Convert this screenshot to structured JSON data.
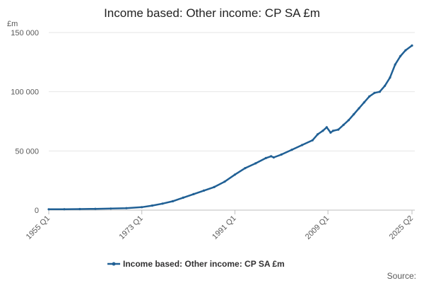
{
  "colors": {
    "series": "#206095",
    "grid": "#e6e6e6",
    "axis": "#bdbdbd"
  },
  "chart_data": {
    "type": "line",
    "title": "Income based: Other income: CP SA £m",
    "unit_label": "£m",
    "source_label": "Source:",
    "xlabel": "",
    "ylabel": "",
    "ylim": [
      0,
      150000
    ],
    "yticks": [
      0,
      50000,
      100000,
      150000
    ],
    "ytick_labels": [
      "0",
      "50 000",
      "100 000",
      "150 000"
    ],
    "xtick_labels": [
      "1955 Q1",
      "1973 Q1",
      "1991 Q1",
      "2009 Q1",
      "2025 Q2"
    ],
    "grid": true,
    "legend_position": "bottom",
    "series": [
      {
        "name": "Income based: Other income: CP SA £m",
        "points": [
          [
            "1955 Q1",
            700
          ],
          [
            "1958 Q1",
            800
          ],
          [
            "1961 Q1",
            900
          ],
          [
            "1964 Q1",
            1100
          ],
          [
            "1967 Q1",
            1300
          ],
          [
            "1970 Q1",
            1700
          ],
          [
            "1973 Q1",
            2500
          ],
          [
            "1975 Q1",
            3800
          ],
          [
            "1977 Q1",
            5500
          ],
          [
            "1979 Q1",
            7500
          ],
          [
            "1981 Q1",
            10500
          ],
          [
            "1983 Q1",
            13500
          ],
          [
            "1985 Q1",
            16500
          ],
          [
            "1987 Q1",
            19500
          ],
          [
            "1989 Q1",
            24000
          ],
          [
            "1991 Q1",
            30000
          ],
          [
            "1993 Q1",
            35500
          ],
          [
            "1995 Q1",
            39500
          ],
          [
            "1997 Q1",
            44000
          ],
          [
            "1998 Q1",
            45500
          ],
          [
            "1998 Q3",
            44500
          ],
          [
            "2000 Q1",
            47000
          ],
          [
            "2002 Q1",
            51000
          ],
          [
            "2004 Q1",
            55000
          ],
          [
            "2006 Q1",
            59000
          ],
          [
            "2007 Q1",
            64000
          ],
          [
            "2008 Q1",
            67000
          ],
          [
            "2008 Q4",
            70000
          ],
          [
            "2009 Q3",
            65500
          ],
          [
            "2010 Q1",
            67000
          ],
          [
            "2011 Q1",
            68000
          ],
          [
            "2012 Q1",
            72000
          ],
          [
            "2013 Q1",
            76000
          ],
          [
            "2014 Q1",
            81000
          ],
          [
            "2015 Q1",
            86000
          ],
          [
            "2016 Q1",
            91000
          ],
          [
            "2017 Q1",
            96000
          ],
          [
            "2018 Q1",
            99000
          ],
          [
            "2019 Q1",
            100000
          ],
          [
            "2020 Q1",
            105000
          ],
          [
            "2021 Q1",
            112000
          ],
          [
            "2022 Q1",
            123000
          ],
          [
            "2023 Q1",
            130000
          ],
          [
            "2024 Q1",
            135000
          ],
          [
            "2025 Q2",
            139000
          ]
        ]
      }
    ]
  }
}
